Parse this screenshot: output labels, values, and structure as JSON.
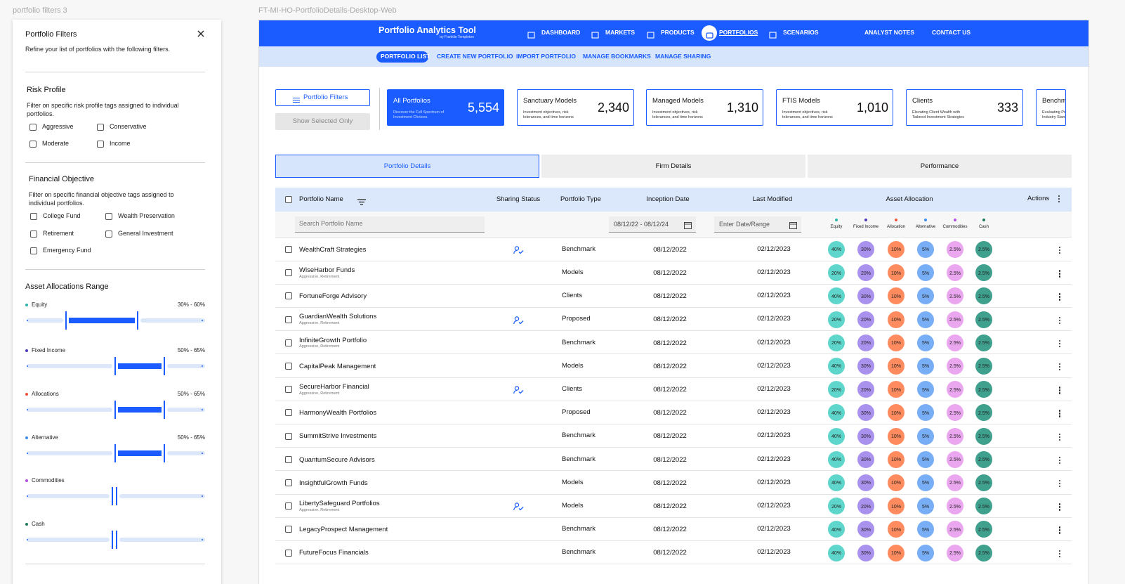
{
  "canvas_labels": [
    "portfolio filters 3",
    "FT-MI-HO-PortfolioDetails-Desktop-Web"
  ],
  "filters": {
    "title": "Portfolio Filters",
    "subtitle": "Refine your list of portfolios with the following filters.",
    "risk_profile": {
      "title": "Risk Profile",
      "description": "Filter on specific risk profile tags assigned to individual portfolios.",
      "options": [
        "Aggressive",
        "Conservative",
        "Moderate",
        "Income"
      ]
    },
    "financial_objective": {
      "title": "Financial Objective",
      "description": "Filter on specific financial objective tags assigned to individual portfolios.",
      "options": [
        "College Fund",
        "Wealth Preservation",
        "Retirement",
        "General Investment",
        "Emergency Fund"
      ]
    },
    "asset_ranges": {
      "title": "Asset Allocations Range",
      "items": [
        {
          "name": "Equity",
          "range": "30% - 60%",
          "color": "#2bb5a8"
        },
        {
          "name": "Fixed Income",
          "range": "50% - 65%",
          "color": "#4a3ab8"
        },
        {
          "name": "Allocations",
          "range": "50% - 65%",
          "color": "#f0533a"
        },
        {
          "name": "Alternative",
          "range": "50% - 65%",
          "color": "#3d8ef0"
        },
        {
          "name": "Commodities",
          "color": "#b04fe0"
        },
        {
          "name": "Cash",
          "color": "#1d7a5c"
        }
      ]
    }
  },
  "nav": {
    "brand": "Portfolio Analytics Tool",
    "brand_sub": "by Franklin Templeton",
    "items": [
      "DASHBOARD",
      "MARKETS",
      "PRODUCTS",
      "PORTFOLIOS",
      "SCENARIOS",
      "ANALYST NOTES",
      "CONTACT US"
    ],
    "active": 3,
    "subitems": [
      "PORTFOLIO LIST",
      "CREATE NEW PORTFOLIO",
      "IMPORT PORTFOLIO",
      "MANAGE BOOKMARKS",
      "MANAGE SHARING"
    ],
    "sub_active": 0
  },
  "buttons": [
    "Portfolio Filters",
    "Show Selected Only"
  ],
  "cards": [
    {
      "title": "All Portfolios",
      "description": "Discover the Full Spectrum of Investment Choices.",
      "value": "5,554"
    },
    {
      "title": "Sanctuary Models",
      "description": "Investment objectives, risk tolerances, and time horizons",
      "value": "2,340"
    },
    {
      "title": "Managed Models",
      "description": "Investment objectives, risk tolerances, and time horizons",
      "value": "1,310"
    },
    {
      "title": "FTIS Models",
      "description": "Investment objectives, risk tolerances, and time horizons",
      "value": "1,010"
    },
    {
      "title": "Clients",
      "description": "Elevating Client Wealth with Tailored Investment Strategies",
      "value": "333"
    },
    {
      "title": "Benchmarks",
      "description": "Evaluating Portfolios Against Industry Standards"
    }
  ],
  "tabs": [
    "Portfolio Details",
    "Firm Details",
    "Performance"
  ],
  "table": {
    "headers": [
      "Portfolio Name",
      "Sharing Status",
      "Portfolio Type",
      "Inception Date",
      "Last Modified",
      "Asset Allocation",
      "Actions"
    ],
    "search_placeholder": "Search Portfolio Name",
    "inception_filter": "08/12/22 - 08/12/24",
    "modified_placeholder": "Enter Date/Range",
    "legend": [
      {
        "name": "Equity",
        "color": "#2bb5a8",
        "fill": "#5fd6cb"
      },
      {
        "name": "Fixed Income",
        "color": "#4a3ab8",
        "fill": "#a991ee"
      },
      {
        "name": "Allocation",
        "color": "#f0533a",
        "fill": "#ff8b5e"
      },
      {
        "name": "Alternative",
        "color": "#3d8ef0",
        "fill": "#78aef5"
      },
      {
        "name": "Commodities",
        "color": "#b04fe0",
        "fill": "#eaa6ee"
      },
      {
        "name": "Cash",
        "color": "#1d7a5c",
        "fill": "#3fa08e"
      }
    ],
    "rows": [
      {
        "name": "WealthCraft Strategies",
        "shared": true,
        "type": "Benchmark",
        "inception": "08/12/2022",
        "modified": "02/12/2023",
        "allocation": [
          "40%",
          "30%",
          "10%",
          "5%",
          "2.5%",
          "2.5%"
        ]
      },
      {
        "name": "WiseHarbor Funds",
        "tags": "Aggressive, Retirement",
        "shared": false,
        "type": "Models",
        "inception": "08/12/2022",
        "modified": "02/12/2023",
        "allocation": [
          "20%",
          "20%",
          "10%",
          "5%",
          "2.5%",
          "2.5%"
        ]
      },
      {
        "name": "FortuneForge Advisory",
        "shared": false,
        "type": "Clients",
        "inception": "08/12/2022",
        "modified": "02/12/2023",
        "allocation": [
          "40%",
          "30%",
          "10%",
          "5%",
          "2.5%",
          "2.5%"
        ]
      },
      {
        "name": "GuardianWealth Solutions",
        "tags": "Aggressive, Retirement",
        "shared": true,
        "type": "Proposed",
        "inception": "08/12/2022",
        "modified": "02/12/2023",
        "allocation": [
          "20%",
          "20%",
          "10%",
          "5%",
          "2.5%",
          "2.5%"
        ]
      },
      {
        "name": "InfiniteGrowth Portfolio",
        "tags": "Aggressive, Retirement",
        "shared": false,
        "type": "Benchmark",
        "inception": "08/12/2022",
        "modified": "02/12/2023",
        "allocation": [
          "20%",
          "20%",
          "10%",
          "5%",
          "2.5%",
          "2.5%"
        ]
      },
      {
        "name": "CapitalPeak Management",
        "shared": false,
        "type": "Models",
        "inception": "08/12/2022",
        "modified": "02/12/2023",
        "allocation": [
          "40%",
          "30%",
          "10%",
          "5%",
          "2.5%",
          "2.5%"
        ]
      },
      {
        "name": "SecureHarbor Financial",
        "tags": "Aggressive, Retirement",
        "shared": true,
        "type": "Clients",
        "inception": "08/12/2022",
        "modified": "02/12/2023",
        "allocation": [
          "20%",
          "20%",
          "10%",
          "5%",
          "2.5%",
          "2.5%"
        ]
      },
      {
        "name": "HarmonyWealth Portfolios",
        "shared": false,
        "type": "Proposed",
        "inception": "08/12/2022",
        "modified": "02/12/2023",
        "allocation": [
          "40%",
          "30%",
          "10%",
          "5%",
          "2.5%",
          "2.5%"
        ]
      },
      {
        "name": "SummitStrive Investments",
        "shared": false,
        "type": "Benchmark",
        "inception": "08/12/2022",
        "modified": "02/12/2023",
        "allocation": [
          "40%",
          "30%",
          "10%",
          "5%",
          "2.5%",
          "2.5%"
        ]
      },
      {
        "name": "QuantumSecure Advisors",
        "shared": false,
        "type": "Benchmark",
        "inception": "08/12/2022",
        "modified": "02/12/2023",
        "allocation": [
          "40%",
          "30%",
          "10%",
          "5%",
          "2.5%",
          "2.5%"
        ]
      },
      {
        "name": "InsightfulGrowth Funds",
        "shared": false,
        "type": "Models",
        "inception": "08/12/2022",
        "modified": "02/12/2023",
        "allocation": [
          "40%",
          "30%",
          "10%",
          "5%",
          "2.5%",
          "2.5%"
        ]
      },
      {
        "name": "LibertySafeguard Portfolios",
        "tags": "Aggressive, Retirement",
        "shared": true,
        "type": "Models",
        "inception": "08/12/2022",
        "modified": "02/12/2023",
        "allocation": [
          "20%",
          "20%",
          "10%",
          "5%",
          "2.5%",
          "2.5%"
        ]
      },
      {
        "name": "LegacyProspect Management",
        "shared": false,
        "type": "Benchmark",
        "inception": "08/12/2022",
        "modified": "02/12/2023",
        "allocation": [
          "40%",
          "30%",
          "10%",
          "5%",
          "2.5%",
          "2.5%"
        ]
      },
      {
        "name": "FutureFocus Financials",
        "shared": false,
        "type": "Benchmark",
        "inception": "08/12/2022",
        "modified": "02/12/2023",
        "allocation": [
          "40%",
          "30%",
          "10%",
          "5%",
          "2.5%",
          "2.5%"
        ]
      }
    ]
  }
}
